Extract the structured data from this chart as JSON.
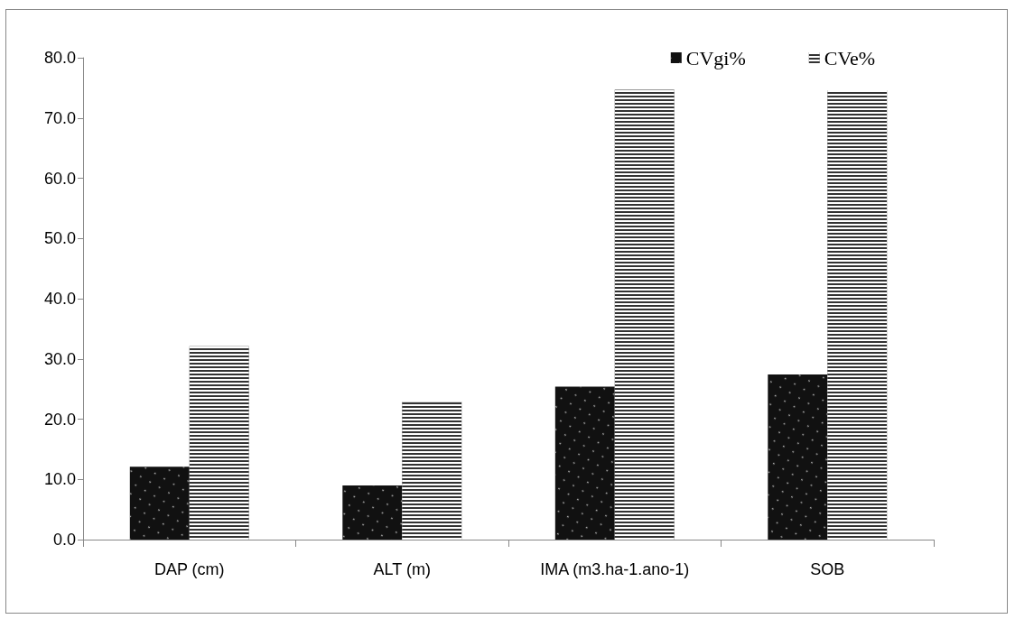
{
  "chart_data": {
    "type": "bar",
    "categories": [
      "DAP (cm)",
      "ALT (m)",
      "IMA (m3.ha-1.ano-1)",
      "SOB"
    ],
    "series": [
      {
        "name": "CVgi%",
        "color": "#111111",
        "values": [
          12.1,
          9.0,
          25.4,
          27.4
        ]
      },
      {
        "name": "CVe%",
        "color": "#333333",
        "values": [
          32.1,
          22.9,
          74.7,
          74.6
        ]
      }
    ],
    "ylim": [
      0,
      80
    ],
    "yticks": [
      {
        "value": 0,
        "label": "0.0"
      },
      {
        "value": 10,
        "label": "10.0"
      },
      {
        "value": 20,
        "label": "20.0"
      },
      {
        "value": 30,
        "label": "30.0"
      },
      {
        "value": 40,
        "label": "40.0"
      },
      {
        "value": 50,
        "label": "50.0"
      },
      {
        "value": 60,
        "label": "60.0"
      },
      {
        "value": 70,
        "label": "70.0"
      },
      {
        "value": 80,
        "label": "80.0"
      }
    ],
    "grid": false,
    "legend": "top right"
  }
}
